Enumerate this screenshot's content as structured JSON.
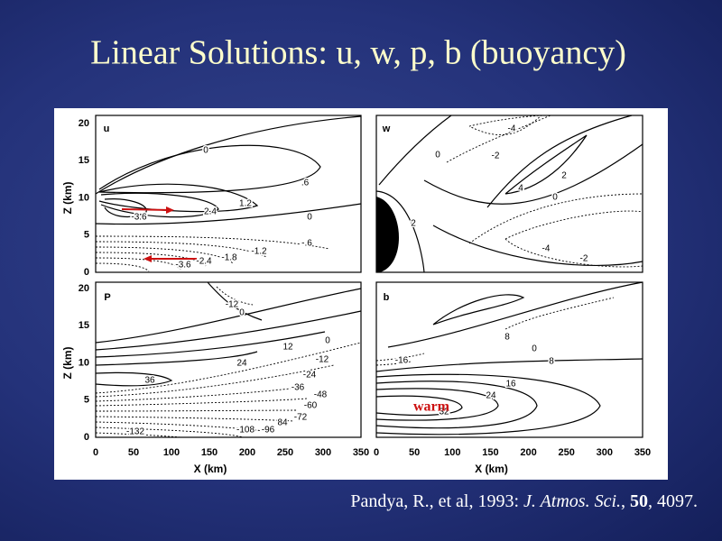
{
  "title": "Linear Solutions: u, w, p, b (buoyancy)",
  "citation": [
    "Pandya, R., et al, 1993: ",
    "J. Atmos. Sci.",
    ", ",
    "50",
    ", 4097."
  ],
  "figure": {
    "y_axis_label": "Z (km)",
    "x_axis_label": "X (km)",
    "y_ticks": [
      "0",
      "5",
      "10",
      "15",
      "20"
    ],
    "x_ticks": [
      "0",
      "50",
      "100",
      "150",
      "200",
      "250",
      "300",
      "350"
    ],
    "annotation": "warm",
    "panels": [
      {
        "label": "u",
        "contour_labels": [
          "0",
          ".6",
          "1.2",
          "2.4",
          "-3.6",
          "0",
          "-.6",
          "-1.2",
          "-1.8",
          "-2.4",
          "-3.6"
        ]
      },
      {
        "label": "w",
        "contour_labels": [
          "-4",
          "-2",
          "0",
          "2",
          "4",
          "0",
          "2",
          "-4",
          "-2"
        ]
      },
      {
        "label": "P",
        "contour_labels": [
          "-12",
          "0",
          "0",
          "12",
          "-12",
          "24",
          "-24",
          "36",
          "-36",
          "-48",
          "-60",
          "-72",
          "84",
          "-96",
          "-108",
          "-132"
        ]
      },
      {
        "label": "b",
        "contour_labels": [
          "8",
          "0",
          "-16",
          "8",
          "16",
          "24",
          "32"
        ]
      }
    ]
  }
}
